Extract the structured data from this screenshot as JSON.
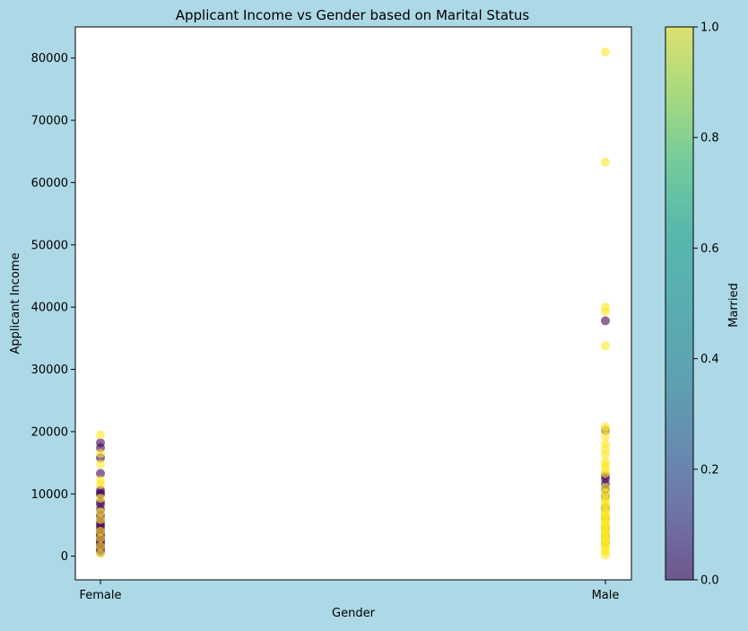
{
  "chart_data": {
    "type": "scatter",
    "title": "Applicant Income vs Gender based on Marital Status",
    "xlabel": "Gender",
    "ylabel": "Applicant Income",
    "categories": [
      "Female",
      "Male"
    ],
    "ylim": [
      -3800,
      85000
    ],
    "yticks": [
      0,
      10000,
      20000,
      30000,
      40000,
      50000,
      60000,
      70000,
      80000
    ],
    "grid": false,
    "colorbar": {
      "label": "Married",
      "range": [
        0,
        1
      ],
      "ticks": [
        "0.0",
        "0.2",
        "0.4",
        "0.6",
        "0.8",
        "1.0"
      ],
      "colormap": "viridis"
    },
    "series": [
      {
        "married": 0,
        "color": "#440154",
        "points": [
          {
            "x": "Female",
            "y": 18200
          },
          {
            "x": "Female",
            "y": 17400
          },
          {
            "x": "Female",
            "y": 15800
          },
          {
            "x": "Female",
            "y": 13300
          },
          {
            "x": "Female",
            "y": 10600
          },
          {
            "x": "Female",
            "y": 10200
          },
          {
            "x": "Female",
            "y": 9900
          },
          {
            "x": "Female",
            "y": 8700
          },
          {
            "x": "Female",
            "y": 8300
          },
          {
            "x": "Female",
            "y": 7500
          },
          {
            "x": "Female",
            "y": 6600
          },
          {
            "x": "Female",
            "y": 6000
          },
          {
            "x": "Female",
            "y": 5400
          },
          {
            "x": "Female",
            "y": 5000
          },
          {
            "x": "Female",
            "y": 4700
          },
          {
            "x": "Female",
            "y": 4200
          },
          {
            "x": "Female",
            "y": 3700
          },
          {
            "x": "Female",
            "y": 3300
          },
          {
            "x": "Female",
            "y": 3000
          },
          {
            "x": "Female",
            "y": 2700
          },
          {
            "x": "Female",
            "y": 2400
          },
          {
            "x": "Female",
            "y": 2100
          },
          {
            "x": "Female",
            "y": 1800
          },
          {
            "x": "Female",
            "y": 1500
          },
          {
            "x": "Female",
            "y": 1100
          },
          {
            "x": "Female",
            "y": 700
          },
          {
            "x": "Male",
            "y": 37800
          },
          {
            "x": "Male",
            "y": 20200
          },
          {
            "x": "Male",
            "y": 12900
          },
          {
            "x": "Male",
            "y": 12400
          },
          {
            "x": "Male",
            "y": 11600
          },
          {
            "x": "Male",
            "y": 10800
          },
          {
            "x": "Male",
            "y": 9600
          },
          {
            "x": "Male",
            "y": 7700
          },
          {
            "x": "Male",
            "y": 6100
          },
          {
            "x": "Male",
            "y": 4500
          },
          {
            "x": "Male",
            "y": 3200
          },
          {
            "x": "Male",
            "y": 2200
          }
        ]
      },
      {
        "married": 1,
        "color": "#fde725",
        "points": [
          {
            "x": "Female",
            "y": 19500
          },
          {
            "x": "Female",
            "y": 16500
          },
          {
            "x": "Female",
            "y": 14800
          },
          {
            "x": "Female",
            "y": 12200
          },
          {
            "x": "Female",
            "y": 11500
          },
          {
            "x": "Female",
            "y": 9300
          },
          {
            "x": "Female",
            "y": 7100
          },
          {
            "x": "Female",
            "y": 5900
          },
          {
            "x": "Female",
            "y": 4000
          },
          {
            "x": "Female",
            "y": 2900
          },
          {
            "x": "Female",
            "y": 1600
          },
          {
            "x": "Female",
            "y": 400
          },
          {
            "x": "Male",
            "y": 81000
          },
          {
            "x": "Male",
            "y": 63300
          },
          {
            "x": "Male",
            "y": 40000
          },
          {
            "x": "Male",
            "y": 39300
          },
          {
            "x": "Male",
            "y": 33800
          },
          {
            "x": "Male",
            "y": 20800
          },
          {
            "x": "Male",
            "y": 20300
          },
          {
            "x": "Male",
            "y": 19200
          },
          {
            "x": "Male",
            "y": 18000
          },
          {
            "x": "Male",
            "y": 17200
          },
          {
            "x": "Male",
            "y": 16300
          },
          {
            "x": "Male",
            "y": 15100
          },
          {
            "x": "Male",
            "y": 14600
          },
          {
            "x": "Male",
            "y": 14000
          },
          {
            "x": "Male",
            "y": 13300
          },
          {
            "x": "Male",
            "y": 11000
          },
          {
            "x": "Male",
            "y": 10200
          },
          {
            "x": "Male",
            "y": 9500
          },
          {
            "x": "Male",
            "y": 9000
          },
          {
            "x": "Male",
            "y": 8500
          },
          {
            "x": "Male",
            "y": 8000
          },
          {
            "x": "Male",
            "y": 7500
          },
          {
            "x": "Male",
            "y": 7000
          },
          {
            "x": "Male",
            "y": 6700
          },
          {
            "x": "Male",
            "y": 6300
          },
          {
            "x": "Male",
            "y": 6000
          },
          {
            "x": "Male",
            "y": 5700
          },
          {
            "x": "Male",
            "y": 5400
          },
          {
            "x": "Male",
            "y": 5100
          },
          {
            "x": "Male",
            "y": 4800
          },
          {
            "x": "Male",
            "y": 4500
          },
          {
            "x": "Male",
            "y": 4100
          },
          {
            "x": "Male",
            "y": 3800
          },
          {
            "x": "Male",
            "y": 3500
          },
          {
            "x": "Male",
            "y": 3200
          },
          {
            "x": "Male",
            "y": 2900
          },
          {
            "x": "Male",
            "y": 2600
          },
          {
            "x": "Male",
            "y": 2300
          },
          {
            "x": "Male",
            "y": 2000
          },
          {
            "x": "Male",
            "y": 1600
          },
          {
            "x": "Male",
            "y": 1200
          },
          {
            "x": "Male",
            "y": 700
          },
          {
            "x": "Male",
            "y": 200
          }
        ]
      }
    ]
  }
}
